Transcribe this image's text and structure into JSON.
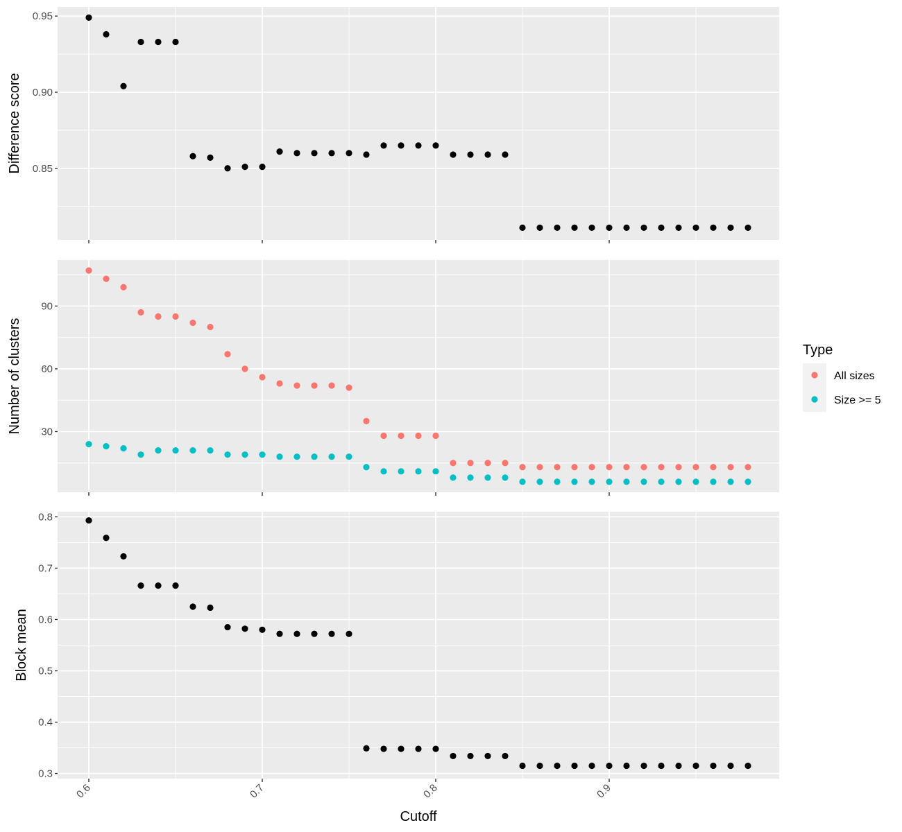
{
  "chart_data": {
    "type": "scatter",
    "xlabel": "Cutoff",
    "x_ticks": [
      "0.6",
      "0.7",
      "0.8",
      "0.9"
    ],
    "x_tick_values": [
      0.6,
      0.7,
      0.8,
      0.9
    ],
    "xlim": [
      0.582,
      0.998
    ],
    "x": [
      0.6,
      0.61,
      0.62,
      0.63,
      0.64,
      0.65,
      0.66,
      0.67,
      0.68,
      0.69,
      0.7,
      0.71,
      0.72,
      0.73,
      0.74,
      0.75,
      0.76,
      0.77,
      0.78,
      0.79,
      0.8,
      0.81,
      0.82,
      0.83,
      0.84,
      0.85,
      0.86,
      0.87,
      0.88,
      0.89,
      0.9,
      0.91,
      0.92,
      0.93,
      0.94,
      0.95,
      0.96,
      0.97,
      0.98
    ],
    "panels": [
      {
        "ylabel": "Difference score",
        "ylim": [
          0.803,
          0.956
        ],
        "y_ticks": [
          "0.85",
          "0.90",
          "0.95"
        ],
        "y_tick_values": [
          0.85,
          0.9,
          0.95
        ],
        "y_minor": [
          0.825,
          0.875,
          0.925
        ],
        "series": [
          {
            "color": "#000000",
            "values": [
              0.949,
              0.938,
              0.904,
              0.933,
              0.933,
              0.933,
              0.858,
              0.857,
              0.85,
              0.851,
              0.851,
              0.861,
              0.86,
              0.86,
              0.86,
              0.86,
              0.859,
              0.865,
              0.865,
              0.865,
              0.865,
              0.859,
              0.859,
              0.859,
              0.859,
              0.811,
              0.811,
              0.811,
              0.811,
              0.811,
              0.811,
              0.811,
              0.811,
              0.811,
              0.811,
              0.811,
              0.811,
              0.811,
              0.811
            ]
          }
        ]
      },
      {
        "ylabel": "Number of clusters",
        "ylim": [
          1,
          112
        ],
        "y_ticks": [
          "30",
          "60",
          "90"
        ],
        "y_tick_values": [
          30,
          60,
          90
        ],
        "y_minor": [
          15,
          45,
          75,
          105
        ],
        "series": [
          {
            "name": "All sizes",
            "color": "#F8766D",
            "values": [
              107,
              103,
              99,
              87,
              85,
              85,
              82,
              80,
              67,
              60,
              56,
              53,
              52,
              52,
              52,
              51,
              35,
              28,
              28,
              28,
              28,
              15,
              15,
              15,
              15,
              13,
              13,
              13,
              13,
              13,
              13,
              13,
              13,
              13,
              13,
              13,
              13,
              13,
              13
            ]
          },
          {
            "name": "Size >= 5",
            "color": "#00BFC4",
            "values": [
              24,
              23,
              22,
              19,
              21,
              21,
              21,
              21,
              19,
              19,
              19,
              18,
              18,
              18,
              18,
              18,
              13,
              11,
              11,
              11,
              11,
              8,
              8,
              8,
              8,
              6,
              6,
              6,
              6,
              6,
              6,
              6,
              6,
              6,
              6,
              6,
              6,
              6,
              6
            ]
          }
        ]
      },
      {
        "ylabel": "Block mean",
        "ylim": [
          0.29,
          0.81
        ],
        "y_ticks": [
          "0.3",
          "0.4",
          "0.5",
          "0.6",
          "0.7",
          "0.8"
        ],
        "y_tick_values": [
          0.3,
          0.4,
          0.5,
          0.6,
          0.7,
          0.8
        ],
        "y_minor": [
          0.35,
          0.45,
          0.55,
          0.65,
          0.75
        ],
        "series": [
          {
            "color": "#000000",
            "values": [
              0.793,
              0.759,
              0.723,
              0.666,
              0.666,
              0.666,
              0.625,
              0.623,
              0.585,
              0.582,
              0.58,
              0.572,
              0.572,
              0.572,
              0.572,
              0.572,
              0.349,
              0.348,
              0.348,
              0.348,
              0.348,
              0.334,
              0.334,
              0.334,
              0.334,
              0.315,
              0.315,
              0.315,
              0.315,
              0.315,
              0.315,
              0.315,
              0.315,
              0.315,
              0.315,
              0.315,
              0.315,
              0.315,
              0.315
            ]
          }
        ]
      }
    ],
    "legend": {
      "title": "Type",
      "position": "right",
      "items": [
        {
          "label": "All sizes",
          "color": "#F8766D"
        },
        {
          "label": "Size >= 5",
          "color": "#00BFC4"
        }
      ]
    },
    "background": "#EBEBEB",
    "grid": true
  }
}
